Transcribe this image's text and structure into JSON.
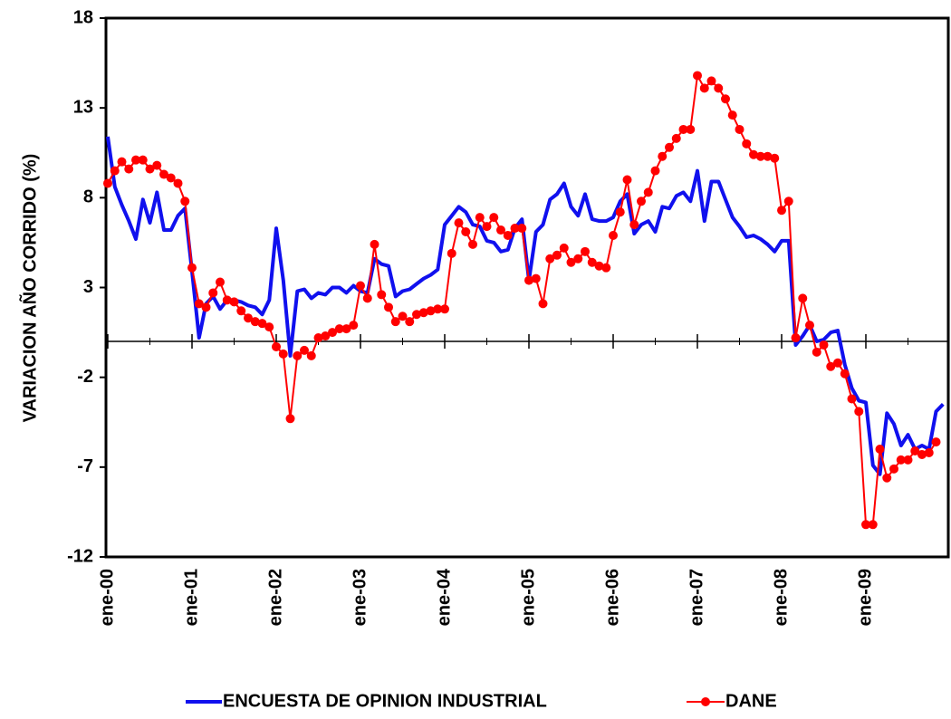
{
  "chart_data": {
    "type": "line",
    "y_label": "VARIACION AÑO CORRIDO (%)",
    "categories": [
      "ene-00",
      null,
      null,
      null,
      null,
      null,
      null,
      null,
      null,
      null,
      null,
      null,
      "ene-01",
      null,
      null,
      null,
      null,
      null,
      null,
      null,
      null,
      null,
      null,
      null,
      "ene-02",
      null,
      null,
      null,
      null,
      null,
      null,
      null,
      null,
      null,
      null,
      null,
      "ene-03",
      null,
      null,
      null,
      null,
      null,
      null,
      null,
      null,
      null,
      null,
      null,
      "ene-04",
      null,
      null,
      null,
      null,
      null,
      null,
      null,
      null,
      null,
      null,
      null,
      "ene-05",
      null,
      null,
      null,
      null,
      null,
      null,
      null,
      null,
      null,
      null,
      null,
      "ene-06",
      null,
      null,
      null,
      null,
      null,
      null,
      null,
      null,
      null,
      null,
      null,
      "ene-07",
      null,
      null,
      null,
      null,
      null,
      null,
      null,
      null,
      null,
      null,
      null,
      "ene-08",
      null,
      null,
      null,
      null,
      null,
      null,
      null,
      null,
      null,
      null,
      null,
      "ene-09",
      null,
      null,
      null,
      null,
      null,
      null,
      null,
      null,
      null,
      null,
      null
    ],
    "series": [
      {
        "name": "ENCUESTA DE OPINION INDUSTRIAL",
        "color": "#1010ee",
        "values": [
          11.4,
          8.6,
          7.6,
          6.7,
          5.7,
          7.9,
          6.6,
          8.3,
          6.2,
          6.2,
          7.0,
          7.4,
          3.9,
          0.2,
          2.1,
          2.5,
          1.8,
          2.3,
          2.3,
          2.2,
          2.0,
          1.9,
          1.5,
          2.3,
          6.3,
          3.4,
          -0.8,
          2.8,
          2.9,
          2.4,
          2.7,
          2.6,
          3.0,
          3.0,
          2.7,
          3.1,
          2.8,
          2.7,
          4.6,
          4.3,
          4.2,
          2.5,
          2.8,
          2.9,
          3.2,
          3.5,
          3.7,
          4.0,
          6.5,
          7.0,
          7.5,
          7.2,
          6.5,
          6.4,
          5.6,
          5.5,
          5.0,
          5.1,
          6.3,
          6.8,
          3.4,
          6.1,
          6.5,
          7.9,
          8.2,
          8.8,
          7.5,
          7.0,
          8.2,
          6.8,
          6.7,
          6.7,
          6.9,
          7.8,
          8.2,
          6.0,
          6.5,
          6.7,
          6.1,
          7.5,
          7.4,
          8.1,
          8.3,
          7.8,
          9.5,
          6.7,
          8.9,
          8.9,
          7.9,
          6.9,
          6.4,
          5.8,
          5.9,
          5.7,
          5.4,
          5.0,
          5.6,
          5.6,
          -0.2,
          0.3,
          0.9,
          0.0,
          0.1,
          0.5,
          0.6,
          -1.3,
          -2.6,
          -3.3,
          -3.4,
          -6.9,
          -7.4,
          -4.0,
          -4.6,
          -5.8,
          -5.2,
          -6.0,
          -5.8,
          -6.0,
          -3.9,
          -3.5
        ]
      },
      {
        "name": "DANE",
        "color": "#ff0000",
        "values": [
          8.8,
          9.5,
          10.0,
          9.6,
          10.1,
          10.1,
          9.6,
          9.8,
          9.3,
          9.1,
          8.8,
          7.8,
          4.1,
          2.1,
          1.9,
          2.7,
          3.3,
          2.3,
          2.2,
          1.7,
          1.3,
          1.1,
          1.0,
          0.8,
          -0.3,
          -0.7,
          -4.3,
          -0.8,
          -0.5,
          -0.8,
          0.2,
          0.3,
          0.5,
          0.7,
          0.7,
          0.9,
          3.1,
          2.4,
          5.4,
          2.6,
          1.9,
          1.1,
          1.4,
          1.1,
          1.5,
          1.6,
          1.7,
          1.8,
          1.8,
          4.9,
          6.6,
          6.1,
          5.4,
          6.9,
          6.4,
          6.9,
          6.2,
          5.9,
          6.3,
          6.3,
          3.4,
          3.5,
          2.1,
          4.6,
          4.8,
          5.2,
          4.4,
          4.6,
          5.0,
          4.4,
          4.2,
          4.1,
          5.9,
          7.2,
          9.0,
          6.5,
          7.8,
          8.3,
          9.5,
          10.3,
          10.8,
          11.3,
          11.8,
          11.8,
          14.8,
          14.1,
          14.5,
          14.1,
          13.5,
          12.6,
          11.8,
          11.0,
          10.4,
          10.3,
          10.3,
          10.2,
          7.3,
          7.8,
          0.2,
          2.4,
          0.9,
          -0.6,
          -0.2,
          -1.4,
          -1.2,
          -1.8,
          -3.2,
          -3.9,
          -10.2,
          -10.2,
          -6.0,
          -7.6,
          -7.1,
          -6.6,
          -6.6,
          -6.1,
          -6.3,
          -6.2,
          -5.6,
          null
        ]
      }
    ],
    "ylim": [
      -12,
      18
    ],
    "yticks": [
      -12,
      -7,
      -2,
      3,
      8,
      13,
      18
    ],
    "grid": false,
    "legend": "bottom"
  }
}
